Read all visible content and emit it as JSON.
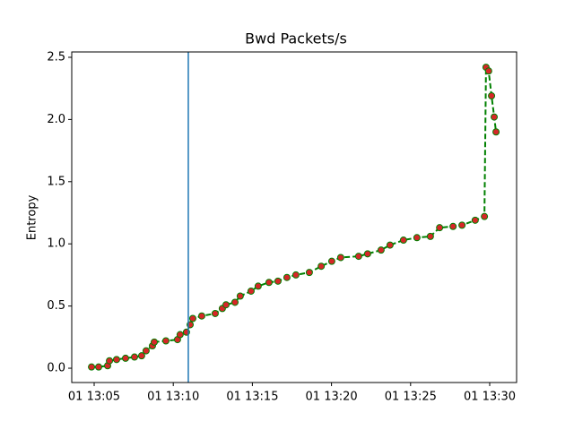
{
  "chart_data": {
    "type": "line",
    "title": "Bwd Packets/s",
    "y_label": "Entropy",
    "x": [
      "01 13:04:50",
      "01 13:05:17",
      "01 13:05:51",
      "01 13:05:58",
      "01 13:06:25",
      "01 13:06:59",
      "01 13:07:33",
      "01 13:08:00",
      "01 13:08:17",
      "01 13:08:41",
      "01 13:08:48",
      "01 13:09:32",
      "01 13:10:16",
      "01 13:10:26",
      "01 13:10:50",
      "01 13:11:04",
      "01 13:11:14",
      "01 13:11:48",
      "01 13:12:39",
      "01 13:13:06",
      "01 13:13:20",
      "01 13:13:54",
      "01 13:14:14",
      "01 13:14:55",
      "01 13:15:22",
      "01 13:16:03",
      "01 13:16:37",
      "01 13:17:11",
      "01 13:17:45",
      "01 13:18:36",
      "01 13:19:21",
      "01 13:20:01",
      "01 13:20:35",
      "01 13:21:43",
      "01 13:22:17",
      "01 13:23:08",
      "01 13:23:42",
      "01 13:24:33",
      "01 13:25:24",
      "01 13:26:15",
      "01 13:26:50",
      "01 13:27:41",
      "01 13:28:15",
      "01 13:29:05",
      "01 13:29:40",
      "01 13:29:46",
      "01 13:29:56",
      "01 13:30:07",
      "01 13:30:17",
      "01 13:30:24"
    ],
    "series": [
      {
        "color": "#008000",
        "marker_color": "#d62728",
        "values": [
          0.01,
          0.01,
          0.02,
          0.06,
          0.07,
          0.08,
          0.09,
          0.1,
          0.14,
          0.18,
          0.21,
          0.22,
          0.23,
          0.27,
          0.29,
          0.35,
          0.4,
          0.42,
          0.44,
          0.48,
          0.51,
          0.53,
          0.58,
          0.62,
          0.66,
          0.69,
          0.7,
          0.73,
          0.75,
          0.77,
          0.82,
          0.86,
          0.89,
          0.9,
          0.92,
          0.95,
          0.99,
          1.03,
          1.05,
          1.06,
          1.13,
          1.14,
          1.15,
          1.19,
          1.22,
          2.42,
          2.39,
          2.19,
          2.02,
          1.9
        ]
      }
    ],
    "vline": {
      "x": "01 13:10:57",
      "color": "#1f77b4"
    },
    "xlim": [
      "01 13:03:35",
      "01 13:31:42"
    ],
    "xticks": [
      {
        "value": "01 13:05:00",
        "label": "01 13:05"
      },
      {
        "value": "01 13:10:00",
        "label": "01 13:10"
      },
      {
        "value": "01 13:15:00",
        "label": "01 13:15"
      },
      {
        "value": "01 13:20:00",
        "label": "01 13:20"
      },
      {
        "value": "01 13:25:00",
        "label": "01 13:25"
      },
      {
        "value": "01 13:30:00",
        "label": "01 13:30"
      }
    ],
    "ylim": [
      -0.115,
      2.543
    ],
    "yticks": [
      {
        "value": 0,
        "label": "0.0"
      },
      0.5,
      {
        "value": 1,
        "label": "1.0"
      },
      1.5,
      {
        "value": 2,
        "label": "2.0"
      },
      2.5
    ]
  }
}
